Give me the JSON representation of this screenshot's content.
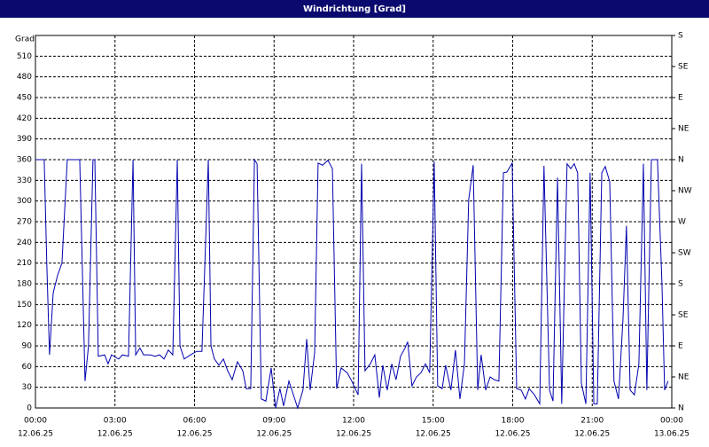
{
  "chart_data": {
    "type": "line",
    "title": "Windrichtung [Grad]",
    "y_label": "Grad",
    "xlim": [
      0,
      24
    ],
    "xticks": [
      {
        "value": 0,
        "label": "00:00"
      },
      {
        "value": 3,
        "label": "03:00"
      },
      {
        "value": 6,
        "label": "06:00"
      },
      {
        "value": 9,
        "label": "09:00"
      },
      {
        "value": 12,
        "label": "12:00"
      },
      {
        "value": 15,
        "label": "15:00"
      },
      {
        "value": 18,
        "label": "18:00"
      },
      {
        "value": 21,
        "label": "21:00"
      },
      {
        "value": 24,
        "label": "00:00"
      }
    ],
    "xtick_dates": [
      "12.06.25",
      "12.06.25",
      "12.06.25",
      "12.06.25",
      "12.06.25",
      "12.06.25",
      "12.06.25",
      "12.06.25",
      "13.06.25"
    ],
    "ylim": [
      0,
      540
    ],
    "yticks": [
      0,
      30,
      60,
      90,
      120,
      150,
      180,
      210,
      240,
      270,
      300,
      330,
      360,
      390,
      420,
      450,
      480,
      510
    ],
    "y2lim": [
      0,
      540
    ],
    "y2ticks": [
      {
        "value": 0,
        "label": "N"
      },
      {
        "value": 45,
        "label": "NE"
      },
      {
        "value": 90,
        "label": "E"
      },
      {
        "value": 135,
        "label": "SE"
      },
      {
        "value": 180,
        "label": "S"
      },
      {
        "value": 225,
        "label": "SW"
      },
      {
        "value": 270,
        "label": "W"
      },
      {
        "value": 315,
        "label": "NW"
      },
      {
        "value": 360,
        "label": "N"
      },
      {
        "value": 405,
        "label": "NE"
      },
      {
        "value": 450,
        "label": "E"
      },
      {
        "value": 495,
        "label": "SE"
      },
      {
        "value": 540,
        "label": "S"
      }
    ],
    "grid": true,
    "series": [
      {
        "color": "#0000b0",
        "x": [
          0,
          0.33,
          0.43,
          0.53,
          0.67,
          0.84,
          1.0,
          1.2,
          1.67,
          1.87,
          2.0,
          2.17,
          2.24,
          2.37,
          2.61,
          2.74,
          2.87,
          3.14,
          3.28,
          3.51,
          3.68,
          3.78,
          3.94,
          4.08,
          4.34,
          4.51,
          4.68,
          4.85,
          5.01,
          5.18,
          5.35,
          5.45,
          5.61,
          5.85,
          6.08,
          6.28,
          6.52,
          6.62,
          6.75,
          6.92,
          7.09,
          7.25,
          7.42,
          7.62,
          7.82,
          7.95,
          8.12,
          8.26,
          8.36,
          8.52,
          8.69,
          8.89,
          9.06,
          9.22,
          9.36,
          9.56,
          9.73,
          9.89,
          10.09,
          10.23,
          10.36,
          10.53,
          10.66,
          10.83,
          11.03,
          11.2,
          11.36,
          11.53,
          11.76,
          11.93,
          12.17,
          12.3,
          12.43,
          12.63,
          12.8,
          12.97,
          13.1,
          13.27,
          13.44,
          13.6,
          13.77,
          13.94,
          14.04,
          14.2,
          14.37,
          14.54,
          14.71,
          14.87,
          15.04,
          15.17,
          15.34,
          15.47,
          15.67,
          15.84,
          16.01,
          16.18,
          16.34,
          16.51,
          16.68,
          16.81,
          16.98,
          17.15,
          17.31,
          17.48,
          17.65,
          17.78,
          17.98,
          18.15,
          18.32,
          18.48,
          18.62,
          18.82,
          19.02,
          19.18,
          19.39,
          19.52,
          19.69,
          19.85,
          20.05,
          20.19,
          20.32,
          20.45,
          20.59,
          20.76,
          20.92,
          21.06,
          21.19,
          21.36,
          21.49,
          21.66,
          21.82,
          21.99,
          22.16,
          22.29,
          22.43,
          22.59,
          22.76,
          22.93,
          23.06,
          23.23,
          23.46,
          23.63,
          23.73,
          23.86
        ],
        "values": [
          360,
          360,
          206,
          77,
          167,
          193,
          210,
          360,
          360,
          39,
          90,
          360,
          360,
          75,
          77,
          64,
          77,
          71,
          77,
          75,
          360,
          77,
          87,
          77,
          77,
          75,
          77,
          71,
          84,
          77,
          360,
          90,
          71,
          77,
          82,
          82,
          360,
          90,
          71,
          62,
          71,
          54,
          41,
          67,
          54,
          28,
          28,
          360,
          354,
          13,
          10,
          58,
          0,
          28,
          3,
          39,
          19,
          0,
          26,
          100,
          26,
          80,
          355,
          352,
          359,
          347,
          28,
          58,
          51,
          39,
          19,
          354,
          54,
          64,
          77,
          15,
          62,
          26,
          64,
          41,
          75,
          87,
          96,
          32,
          45,
          51,
          64,
          51,
          357,
          32,
          28,
          62,
          26,
          84,
          13,
          64,
          302,
          352,
          26,
          77,
          26,
          45,
          41,
          39,
          341,
          342,
          355,
          28,
          26,
          13,
          28,
          19,
          6,
          351,
          26,
          10,
          334,
          6,
          354,
          347,
          354,
          341,
          36,
          6,
          341,
          6,
          6,
          341,
          350,
          328,
          39,
          13,
          129,
          264,
          26,
          19,
          64,
          354,
          26,
          360,
          360,
          180,
          26,
          39
        ]
      }
    ]
  }
}
